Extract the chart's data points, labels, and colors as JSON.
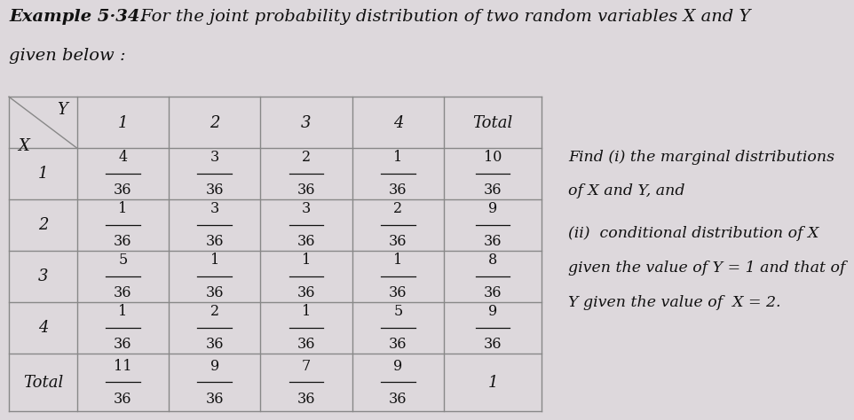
{
  "title_bold": "Example 5·34.",
  "title_rest": " For the joint probability distribution of two random variables X and Y",
  "title_line2": "given below :",
  "bg_color": "#ddd8dc",
  "col_headers": [
    "1",
    "2",
    "3",
    "4",
    "Total"
  ],
  "row_headers": [
    "1",
    "2",
    "3",
    "4",
    "Total"
  ],
  "cell_numerators": [
    [
      "4",
      "3",
      "2",
      "1",
      "10"
    ],
    [
      "1",
      "3",
      "3",
      "2",
      "9"
    ],
    [
      "5",
      "1",
      "1",
      "1",
      "8"
    ],
    [
      "1",
      "2",
      "1",
      "5",
      "9"
    ],
    [
      "11",
      "9",
      "7",
      "9",
      "1"
    ]
  ],
  "cell_denominators": [
    [
      "36",
      "36",
      "36",
      "36",
      "36"
    ],
    [
      "36",
      "36",
      "36",
      "36",
      "36"
    ],
    [
      "36",
      "36",
      "36",
      "36",
      "36"
    ],
    [
      "36",
      "36",
      "36",
      "36",
      "36"
    ],
    [
      "36",
      "36",
      "36",
      "36",
      ""
    ]
  ],
  "side_text": [
    "Find (i) the marginal distributions",
    "of X and Y, and",
    "(ii)  conditional distribution of X",
    "given the value of Y = 1 and that of",
    "Y given the value of  X = 2."
  ],
  "line_color": "#888888",
  "text_color": "#333333"
}
